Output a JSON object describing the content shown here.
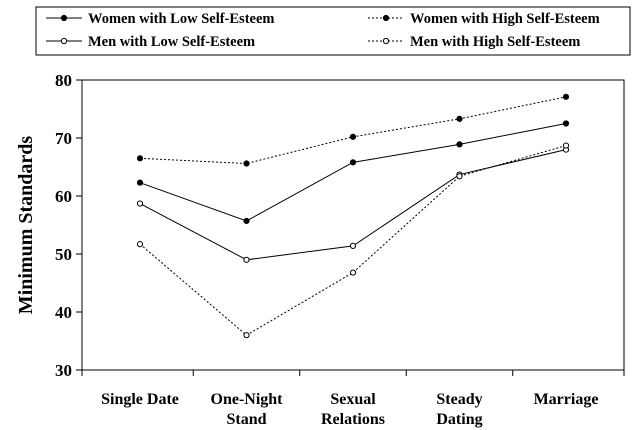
{
  "chart_data": {
    "type": "line",
    "title": "",
    "xlabel": "",
    "ylabel": "Minimum Standards",
    "ylim": [
      30,
      80
    ],
    "yticks": [
      30,
      40,
      50,
      60,
      70,
      80
    ],
    "grid": false,
    "legend_position": "top",
    "categories": [
      [
        "Single Date"
      ],
      [
        "One-Night",
        "Stand"
      ],
      [
        "Sexual",
        "Relations"
      ],
      [
        "Steady",
        "Dating"
      ],
      [
        "Marriage"
      ]
    ],
    "series": [
      {
        "name": "Women with Low Self-Esteem",
        "values": [
          62.3,
          55.7,
          65.8,
          68.9,
          72.5
        ],
        "line": "solid",
        "marker": "filled"
      },
      {
        "name": "Women with High Self-Esteem",
        "values": [
          66.5,
          65.6,
          70.2,
          73.3,
          77.1
        ],
        "line": "dotted",
        "marker": "filled"
      },
      {
        "name": "Men with Low Self-Esteem",
        "values": [
          58.7,
          49.0,
          51.4,
          63.7,
          68.0
        ],
        "line": "solid",
        "marker": "open"
      },
      {
        "name": "Men with High Self-Esteem",
        "values": [
          51.7,
          36.0,
          46.8,
          63.4,
          68.7
        ],
        "line": "dotted",
        "marker": "open"
      }
    ]
  }
}
